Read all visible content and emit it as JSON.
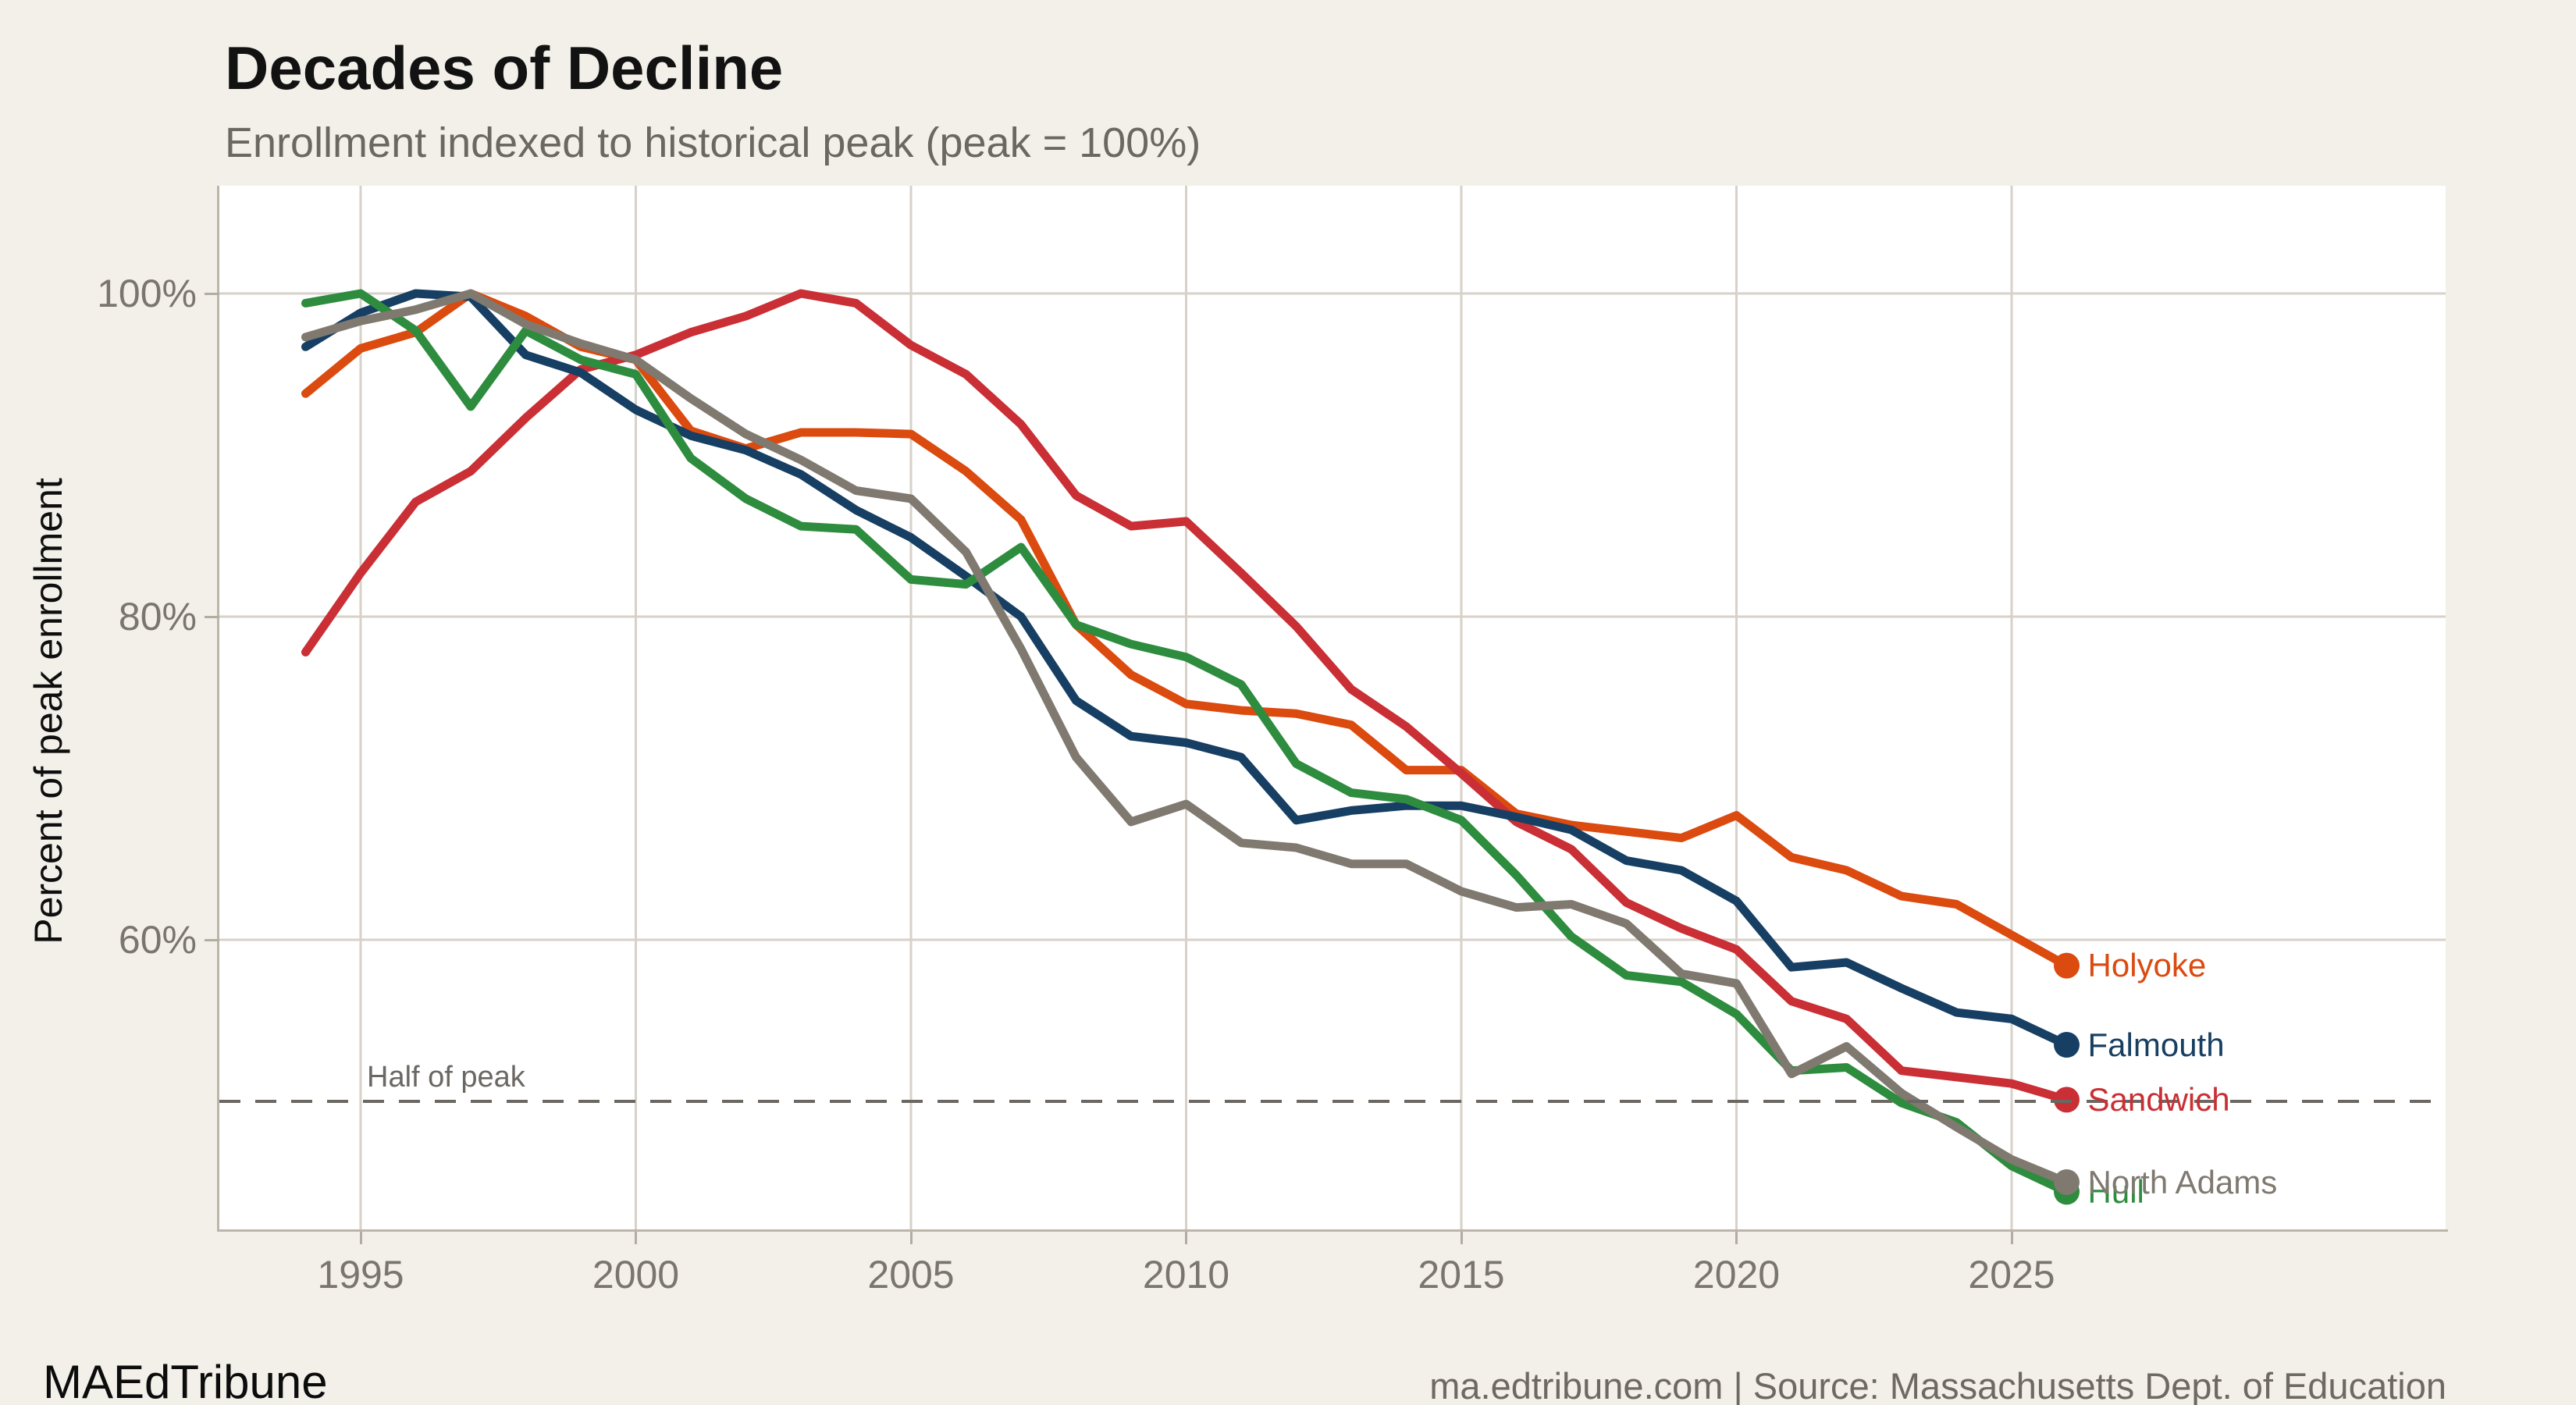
{
  "header": {
    "title": "Decades of Decline",
    "subtitle": "Enrollment indexed to historical peak (peak = 100%)"
  },
  "footer": {
    "brand": "MAEdTribune",
    "source": "ma.edtribune.com | Source: Massachusetts Dept. of Education"
  },
  "colors": {
    "background": "#F3F0EA",
    "panel": "#FFFFFF",
    "gridline": "#D7D1C8",
    "spine": "#BCB5AA",
    "tick": "#B2ACA1",
    "tick_text": "#7A756E",
    "dashed_line": "#6B6762",
    "holyoke": "#DB4A0F",
    "falmouth": "#173F63",
    "sandwich": "#C92F34",
    "north_adams": "#7F7970",
    "hull": "#2E8C3E"
  },
  "chart_data": {
    "type": "line",
    "title": "Decades of Decline",
    "subtitle": "Enrollment indexed to historical peak (peak = 100%)",
    "xlabel": "",
    "ylabel": "Percent of peak enrollment",
    "xlim": [
      1992.43,
      2032.95
    ],
    "ylim": [
      42.1,
      106.7
    ],
    "grid": true,
    "legend_position": "end-of-line",
    "x": [
      1994,
      1995,
      1996,
      1997,
      1998,
      1999,
      2000,
      2001,
      2002,
      2003,
      2004,
      2005,
      2006,
      2007,
      2008,
      2009,
      2010,
      2011,
      2012,
      2013,
      2014,
      2015,
      2016,
      2017,
      2018,
      2019,
      2020,
      2021,
      2022,
      2023,
      2024,
      2025,
      2026
    ],
    "x_ticks": [
      {
        "value": 1995,
        "label": "1995"
      },
      {
        "value": 2000,
        "label": "2000"
      },
      {
        "value": 2005,
        "label": "2005"
      },
      {
        "value": 2010,
        "label": "2010"
      },
      {
        "value": 2015,
        "label": "2015"
      },
      {
        "value": 2020,
        "label": "2020"
      },
      {
        "value": 2025,
        "label": "2025"
      }
    ],
    "y_ticks": [
      {
        "value": 100,
        "label": "100%"
      },
      {
        "value": 80,
        "label": "80%"
      },
      {
        "value": 60,
        "label": "60%"
      }
    ],
    "series": [
      {
        "name": "Holyoke",
        "color": "#DB4A0F",
        "values": [
          93.8,
          96.6,
          97.6,
          100,
          98.6,
          96.7,
          95.9,
          91.5,
          90.4,
          91.4,
          91.4,
          91.3,
          89.0,
          86.0,
          79.5,
          76.4,
          74.6,
          74.2,
          74.0,
          73.3,
          70.5,
          70.5,
          67.8,
          67.1,
          66.7,
          66.3,
          67.7,
          65.1,
          64.3,
          62.7,
          62.2,
          60.3,
          58.4
        ]
      },
      {
        "name": "Sandwich",
        "color": "#C92F34",
        "values": [
          77.8,
          82.7,
          87.1,
          89.0,
          92.3,
          95.3,
          96.2,
          97.6,
          98.6,
          100,
          99.4,
          96.8,
          95.0,
          91.9,
          87.5,
          85.6,
          85.9,
          82.7,
          79.4,
          75.5,
          73.2,
          70.3,
          67.3,
          65.6,
          62.3,
          60.7,
          59.4,
          56.2,
          55.1,
          51.9,
          51.5,
          51.1,
          50.1
        ]
      },
      {
        "name": "Falmouth",
        "color": "#173F63",
        "values": [
          96.7,
          98.8,
          100,
          99.8,
          96.2,
          95.1,
          92.8,
          91.2,
          90.3,
          88.8,
          86.6,
          84.9,
          82.5,
          80.0,
          74.8,
          72.6,
          72.2,
          71.3,
          67.4,
          68.0,
          68.3,
          68.3,
          67.6,
          66.8,
          64.9,
          64.3,
          62.4,
          58.3,
          58.6,
          57.0,
          55.5,
          55.1,
          53.5
        ]
      },
      {
        "name": "Hull",
        "color": "#2E8C3E",
        "values": [
          99.4,
          100,
          97.7,
          93.0,
          97.7,
          95.9,
          95.0,
          89.8,
          87.3,
          85.6,
          85.4,
          82.3,
          82.0,
          84.3,
          79.5,
          78.3,
          77.5,
          75.8,
          70.9,
          69.1,
          68.7,
          67.4,
          64.0,
          60.2,
          57.8,
          57.4,
          55.4,
          51.9,
          52.1,
          49.9,
          48.7,
          46.0,
          44.4
        ]
      },
      {
        "name": "North Adams",
        "color": "#7F7970",
        "values": [
          97.3,
          98.3,
          99.0,
          100,
          98.1,
          96.9,
          95.9,
          93.5,
          91.3,
          89.7,
          87.8,
          87.3,
          84.0,
          78.0,
          71.3,
          67.3,
          68.4,
          66.0,
          65.7,
          64.7,
          64.7,
          63.0,
          62.0,
          62.2,
          61.0,
          57.9,
          57.3,
          51.7,
          53.4,
          50.5,
          48.4,
          46.4,
          45.0
        ]
      }
    ],
    "annotations": {
      "half_line": {
        "y": 50,
        "label": "Half of peak",
        "style": "dashed"
      }
    }
  },
  "layout_text": {}
}
